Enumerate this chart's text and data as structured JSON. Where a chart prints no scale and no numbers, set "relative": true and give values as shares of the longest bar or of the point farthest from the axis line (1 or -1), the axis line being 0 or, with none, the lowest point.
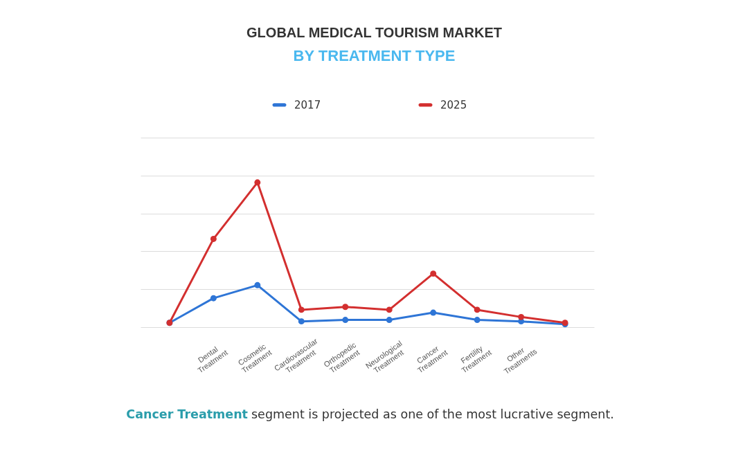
{
  "chart_data": {
    "type": "line",
    "title": "GLOBAL MEDICAL TOURISM MARKET",
    "subtitle": "BY TREATMENT TYPE",
    "categories": [
      null,
      "Dental Treatment",
      "Cosmetic Treatment",
      "Cardiovascular Treatment",
      "Orthopedic Treatment",
      "Neurological Treatment",
      "Cancer Treatment",
      "Fertility Treatment",
      "Other Treatments",
      null
    ],
    "series": [
      {
        "name": "2017",
        "color": "#2e75d6",
        "values": [
          0.03,
          0.2,
          0.29,
          0.04,
          0.05,
          0.05,
          0.1,
          0.05,
          0.04,
          0.02
        ]
      },
      {
        "name": "2025",
        "color": "#d32f2f",
        "values": [
          0.03,
          0.61,
          1,
          0.12,
          0.14,
          0.12,
          0.37,
          0.12,
          0.07,
          0.03
        ]
      }
    ],
    "relative": true,
    "grid": "y",
    "legend": "top",
    "marker": "circle",
    "line_style": "solid",
    "annotations": [
      "Cancer Treatment",
      "segment is projected as one of the most lucrative segment."
    ]
  }
}
